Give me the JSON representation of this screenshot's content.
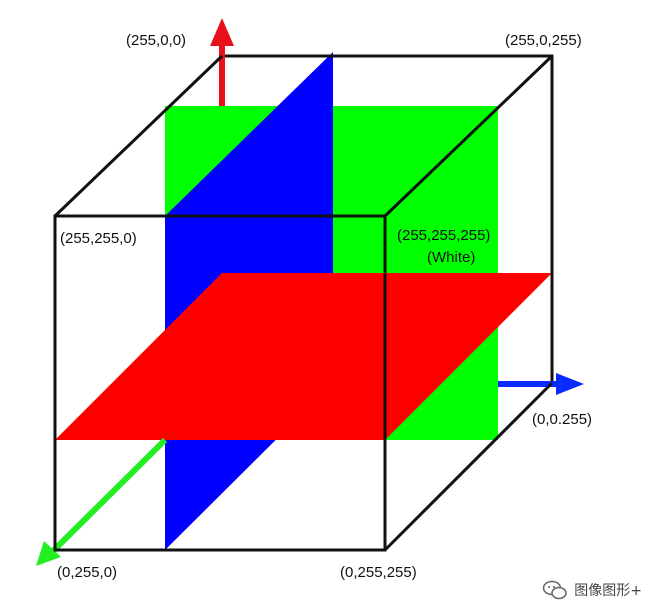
{
  "diagram": {
    "labels": {
      "top_left_back": "(255,0,0)",
      "top_right_back": "(255,0,255)",
      "top_left_front": "(255,255,0)",
      "top_right_front": "(255,255,255)",
      "white_note": "(White)",
      "right_axis_end": "(0,0.255)",
      "bottom_left_front": "(0,255,0)",
      "bottom_right_front": "(0,255,255)"
    },
    "colors": {
      "red_plane": "#ff0000",
      "green_plane": "#00ff00",
      "blue_plane": "#0000ff",
      "red_axis": "#e8101a",
      "green_axis": "#22ee22",
      "blue_axis": "#0a2aff",
      "edges": "#111111"
    }
  },
  "watermark": {
    "text": "图像图形+",
    "icon": "wechat-bubbles-icon"
  }
}
